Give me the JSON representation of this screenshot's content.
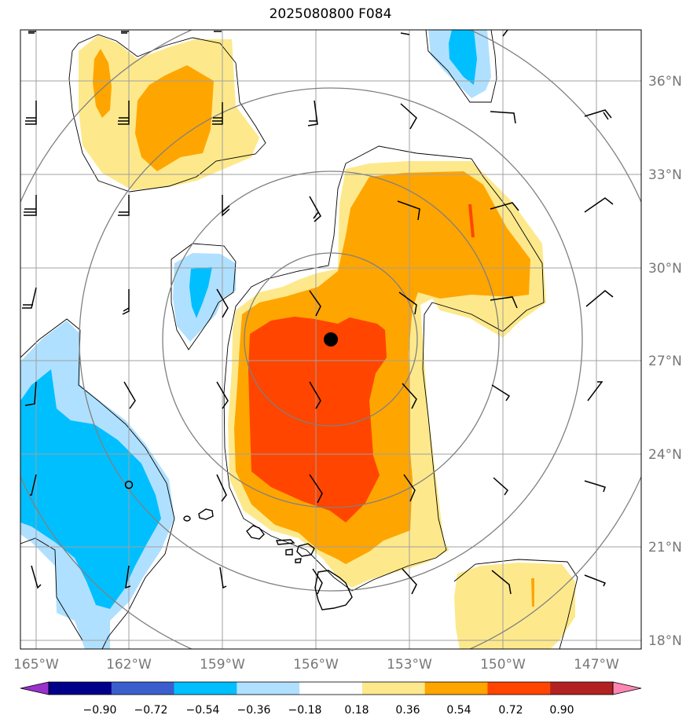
{
  "title": "2025080800 F084",
  "longitude_labels": [
    "165°W",
    "162°W",
    "159°W",
    "156°W",
    "153°W",
    "150°W",
    "147°W"
  ],
  "latitude_labels": [
    "36°N",
    "33°N",
    "30°N",
    "27°N",
    "24°N",
    "21°N",
    "18°N"
  ],
  "colorbar": {
    "colors": [
      "#9932cc",
      "#00008b",
      "#3a5fcd",
      "#00bfff",
      "#b0e0ff",
      "#ffffff",
      "#fde98c",
      "#ffa500",
      "#ff4500",
      "#b22222",
      "#ff85b4"
    ],
    "tick_labels": [
      "−0.90",
      "−0.72",
      "−0.54",
      "−0.36",
      "−0.18",
      "0.18",
      "0.36",
      "0.54",
      "0.72",
      "0.90"
    ]
  },
  "colors": {
    "grid": "#a0a0a0",
    "range_rings": "#808080",
    "contour_line": "#000000",
    "center_marker": "#000000"
  },
  "map": {
    "center_marker": {
      "lon": -155.5,
      "lat": 27.6
    }
  }
}
